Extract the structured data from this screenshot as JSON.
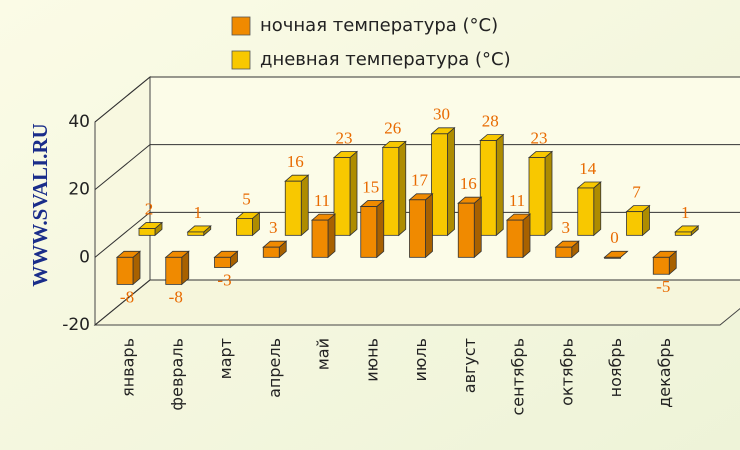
{
  "chart_data": {
    "type": "bar3d",
    "watermark": "WWW.SVALI.RU",
    "categories": [
      "январь",
      "февраль",
      "март",
      "апрель",
      "май",
      "июнь",
      "июль",
      "август",
      "сентябрь",
      "октябрь",
      "ноябрь",
      "декабрь"
    ],
    "series": [
      {
        "name": "ночная температура (°C)",
        "color": "#f08a00",
        "values": [
          -8,
          -8,
          -3,
          3,
          11,
          15,
          17,
          16,
          11,
          3,
          0,
          -5
        ]
      },
      {
        "name": "дневная температура (°C)",
        "color": "#f8c800",
        "values": [
          2,
          1,
          5,
          16,
          23,
          26,
          30,
          28,
          23,
          14,
          7,
          1
        ]
      }
    ],
    "ylim": [
      -20,
      40
    ],
    "yticks": [
      -20,
      0,
      20,
      40
    ],
    "grid": true
  }
}
